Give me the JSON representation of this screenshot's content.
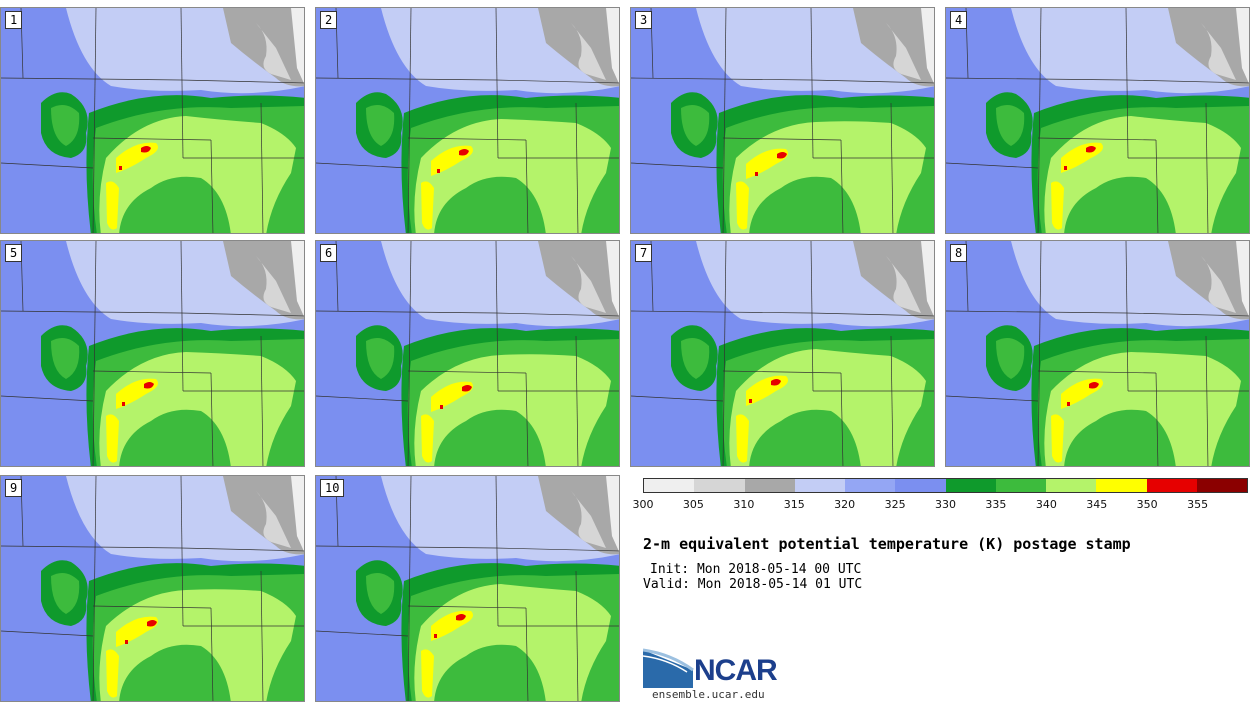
{
  "panels": [
    "1",
    "2",
    "3",
    "4",
    "5",
    "6",
    "7",
    "8",
    "9",
    "10"
  ],
  "colorbar": {
    "colors": [
      "#efefef",
      "#d6d6d6",
      "#a8a8a8",
      "#c3cdf5",
      "#94a6f4",
      "#7b8ff0",
      "#0f9a2c",
      "#3dbb3d",
      "#b4f36a",
      "#ffff00",
      "#e60000",
      "#8b0000"
    ],
    "ticks": [
      "300",
      "305",
      "310",
      "315",
      "320",
      "325",
      "330",
      "335",
      "340",
      "345",
      "350",
      "355"
    ]
  },
  "title": "2-m equivalent potential temperature (K) postage stamp",
  "init": "Init: Mon 2018-05-14 00 UTC",
  "valid": "Valid: Mon 2018-05-14 01 UTC",
  "logo": {
    "text": "NCAR",
    "site": "ensemble.ucar.edu"
  }
}
